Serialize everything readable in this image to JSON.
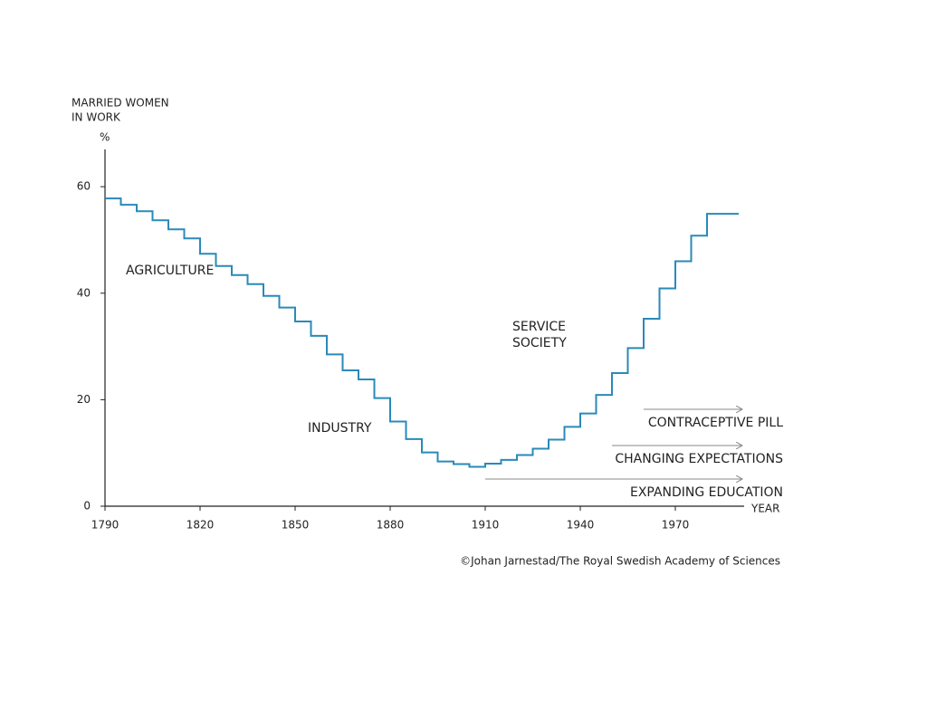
{
  "chart_data": {
    "type": "step",
    "y_label": [
      "MARRIED WOMEN",
      "IN WORK"
    ],
    "y_unit": "%",
    "x_label": "YEAR",
    "credit": "©Johan Jarnestad/The Royal Swedish Academy of Sciences",
    "series": [
      {
        "name": "Married women in work",
        "color": "#2a8ab8",
        "x": [
          1790,
          1795,
          1800,
          1805,
          1810,
          1815,
          1820,
          1825,
          1830,
          1835,
          1840,
          1845,
          1850,
          1855,
          1860,
          1865,
          1870,
          1875,
          1880,
          1885,
          1890,
          1895,
          1900,
          1905,
          1910,
          1915,
          1920,
          1925,
          1930,
          1935,
          1940,
          1945,
          1950,
          1955,
          1960,
          1965,
          1970,
          1975,
          1980,
          1985
        ],
        "values": [
          57.8,
          56.6,
          55.4,
          53.7,
          52,
          50.3,
          47.4,
          45.1,
          43.4,
          41.7,
          39.5,
          37.3,
          34.7,
          32,
          28.5,
          25.5,
          23.8,
          20.3,
          15.9,
          12.6,
          10.1,
          8.4,
          7.9,
          7.4,
          8,
          8.7,
          9.6,
          10.8,
          12.5,
          14.9,
          17.4,
          20.9,
          25,
          29.7,
          35.2,
          40.9,
          46,
          50.8,
          54.9,
          54.9
        ]
      }
    ],
    "xlim": [
      1790,
      1990
    ],
    "xticks": [
      1790,
      1820,
      1850,
      1880,
      1910,
      1940,
      1970
    ],
    "ylim": [
      0,
      67
    ],
    "yticks": [
      0,
      20,
      40,
      60
    ],
    "eras": [
      {
        "text": [
          "AGRICULTURE"
        ]
      },
      {
        "text": [
          "INDUSTRY"
        ]
      },
      {
        "text": [
          "SERVICE",
          "SOCIETY"
        ]
      }
    ],
    "trends": [
      {
        "text": "CONTRACEPTIVE PILL",
        "from": 1960,
        "to": 1990
      },
      {
        "text": "CHANGING EXPECTATIONS",
        "from": 1950,
        "to": 1990
      },
      {
        "text": "EXPANDING EDUCATION",
        "from": 1910,
        "to": 1990
      }
    ]
  }
}
